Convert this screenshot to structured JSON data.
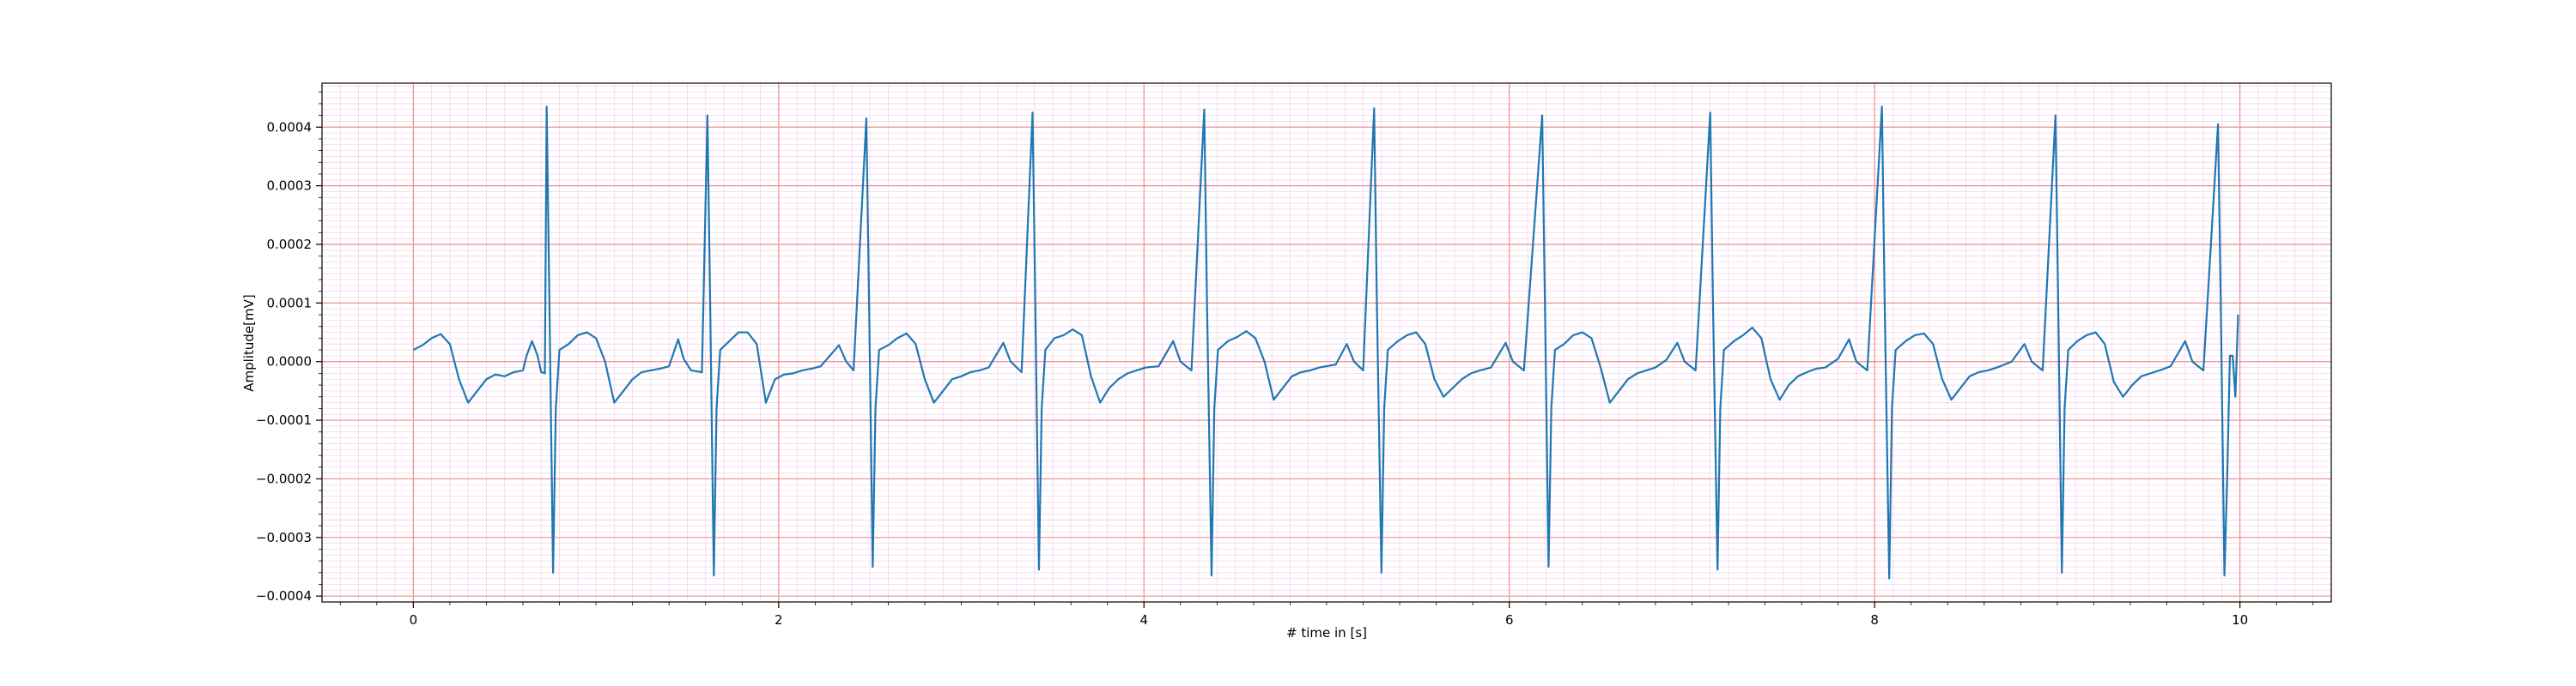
{
  "chart_data": {
    "type": "line",
    "title": "",
    "xlabel": "# time in [s]",
    "ylabel": "Amplitude[mV]",
    "xlim": [
      -0.5,
      10.5
    ],
    "ylim": [
      -0.00041,
      0.000475
    ],
    "x_ticks": [
      0,
      2,
      4,
      6,
      8,
      10
    ],
    "x_tick_labels": [
      "0",
      "2",
      "4",
      "6",
      "8",
      "10"
    ],
    "y_ticks": [
      -0.0004,
      -0.0003,
      -0.0002,
      -0.0001,
      0.0,
      0.0001,
      0.0002,
      0.0003,
      0.0004
    ],
    "y_tick_labels": [
      "−0.0004",
      "−0.0003",
      "−0.0002",
      "−0.0001",
      "0.0000",
      "0.0001",
      "0.0002",
      "0.0003",
      "0.0004"
    ],
    "major_grid": true,
    "minor_grid": true,
    "colors": {
      "line": "#1f77b4",
      "major_grid": "#f28b8b",
      "minor_grid": "#f7d4ee",
      "axes": "#000000"
    },
    "series": [
      {
        "values": [
          [
            0.0,
            2e-05
          ],
          [
            0.05,
            2.8e-05
          ],
          [
            0.1,
            4e-05
          ],
          [
            0.15,
            4.7e-05
          ],
          [
            0.2,
            3e-05
          ],
          [
            0.25,
            -3e-05
          ],
          [
            0.3,
            -7e-05
          ],
          [
            0.35,
            -5e-05
          ],
          [
            0.4,
            -3e-05
          ],
          [
            0.45,
            -2.2e-05
          ],
          [
            0.5,
            -2.5e-05
          ],
          [
            0.55,
            -1.8e-05
          ],
          [
            0.6,
            -1.5e-05
          ],
          [
            0.62,
            1e-05
          ],
          [
            0.65,
            3.5e-05
          ],
          [
            0.68,
            1e-05
          ],
          [
            0.7,
            -1.8e-05
          ],
          [
            0.72,
            -2e-05
          ],
          [
            0.73,
            0.000435
          ],
          [
            0.745,
            0.0001
          ],
          [
            0.765,
            -0.00036
          ],
          [
            0.78,
            -8e-05
          ],
          [
            0.8,
            2e-05
          ],
          [
            0.85,
            3e-05
          ],
          [
            0.9,
            4.5e-05
          ],
          [
            0.95,
            5e-05
          ],
          [
            1.0,
            4e-05
          ],
          [
            1.05,
            0.0
          ],
          [
            1.1,
            -7e-05
          ],
          [
            1.15,
            -5e-05
          ],
          [
            1.2,
            -3e-05
          ],
          [
            1.25,
            -1.8e-05
          ],
          [
            1.3,
            -1.5e-05
          ],
          [
            1.35,
            -1.2e-05
          ],
          [
            1.4,
            -8e-06
          ],
          [
            1.45,
            3.8e-05
          ],
          [
            1.48,
            5e-06
          ],
          [
            1.52,
            -1.5e-05
          ],
          [
            1.58,
            -1.8e-05
          ],
          [
            1.61,
            0.00042
          ],
          [
            1.625,
            0.0001
          ],
          [
            1.645,
            -0.000365
          ],
          [
            1.66,
            -8e-05
          ],
          [
            1.68,
            2e-05
          ],
          [
            1.73,
            3.5e-05
          ],
          [
            1.78,
            5e-05
          ],
          [
            1.83,
            5e-05
          ],
          [
            1.88,
            3e-05
          ],
          [
            1.93,
            -7e-05
          ],
          [
            1.98,
            -3e-05
          ],
          [
            2.03,
            -2.2e-05
          ],
          [
            2.08,
            -2e-05
          ],
          [
            2.13,
            -1.5e-05
          ],
          [
            2.18,
            -1.2e-05
          ],
          [
            2.23,
            -8e-06
          ],
          [
            2.33,
            2.8e-05
          ],
          [
            2.37,
            0.0
          ],
          [
            2.41,
            -1.5e-05
          ],
          [
            2.48,
            0.000415
          ],
          [
            2.495,
            0.0001
          ],
          [
            2.515,
            -0.00035
          ],
          [
            2.53,
            -8e-05
          ],
          [
            2.55,
            2e-05
          ],
          [
            2.6,
            2.8e-05
          ],
          [
            2.65,
            4e-05
          ],
          [
            2.7,
            4.8e-05
          ],
          [
            2.75,
            3e-05
          ],
          [
            2.8,
            -3e-05
          ],
          [
            2.85,
            -7e-05
          ],
          [
            2.9,
            -5e-05
          ],
          [
            2.95,
            -3e-05
          ],
          [
            3.0,
            -2.5e-05
          ],
          [
            3.05,
            -1.8e-05
          ],
          [
            3.1,
            -1.5e-05
          ],
          [
            3.15,
            -1e-05
          ],
          [
            3.23,
            3.2e-05
          ],
          [
            3.27,
            0.0
          ],
          [
            3.33,
            -1.8e-05
          ],
          [
            3.39,
            0.000425
          ],
          [
            3.405,
            0.0001
          ],
          [
            3.425,
            -0.000355
          ],
          [
            3.44,
            -8e-05
          ],
          [
            3.46,
            2e-05
          ],
          [
            3.51,
            4e-05
          ],
          [
            3.56,
            4.5e-05
          ],
          [
            3.61,
            5.5e-05
          ],
          [
            3.66,
            4.5e-05
          ],
          [
            3.71,
            -2.5e-05
          ],
          [
            3.76,
            -7e-05
          ],
          [
            3.81,
            -4.5e-05
          ],
          [
            3.86,
            -3e-05
          ],
          [
            3.91,
            -2e-05
          ],
          [
            3.96,
            -1.5e-05
          ],
          [
            4.01,
            -1e-05
          ],
          [
            4.08,
            -8e-06
          ],
          [
            4.16,
            3.5e-05
          ],
          [
            4.2,
            0.0
          ],
          [
            4.26,
            -1.5e-05
          ],
          [
            4.33,
            0.00043
          ],
          [
            4.345,
            0.0001
          ],
          [
            4.37,
            -0.000365
          ],
          [
            4.385,
            -8e-05
          ],
          [
            4.405,
            2e-05
          ],
          [
            4.46,
            3.5e-05
          ],
          [
            4.51,
            4.2e-05
          ],
          [
            4.56,
            5.2e-05
          ],
          [
            4.61,
            4e-05
          ],
          [
            4.66,
            0.0
          ],
          [
            4.71,
            -6.5e-05
          ],
          [
            4.76,
            -4.5e-05
          ],
          [
            4.81,
            -2.5e-05
          ],
          [
            4.86,
            -1.8e-05
          ],
          [
            4.91,
            -1.5e-05
          ],
          [
            4.96,
            -1e-05
          ],
          [
            5.05,
            -5e-06
          ],
          [
            5.11,
            3e-05
          ],
          [
            5.15,
            0.0
          ],
          [
            5.2,
            -1.5e-05
          ],
          [
            5.26,
            0.000432
          ],
          [
            5.275,
            0.0001
          ],
          [
            5.3,
            -0.00036
          ],
          [
            5.315,
            -8e-05
          ],
          [
            5.335,
            2e-05
          ],
          [
            5.39,
            3.5e-05
          ],
          [
            5.44,
            4.5e-05
          ],
          [
            5.49,
            5e-05
          ],
          [
            5.54,
            3e-05
          ],
          [
            5.59,
            -3e-05
          ],
          [
            5.64,
            -6e-05
          ],
          [
            5.69,
            -4.5e-05
          ],
          [
            5.74,
            -3e-05
          ],
          [
            5.79,
            -2e-05
          ],
          [
            5.84,
            -1.5e-05
          ],
          [
            5.9,
            -1e-05
          ],
          [
            5.98,
            3.2e-05
          ],
          [
            6.02,
            0.0
          ],
          [
            6.08,
            -1.5e-05
          ],
          [
            6.18,
            0.00042
          ],
          [
            6.195,
            0.0001
          ],
          [
            6.215,
            -0.00035
          ],
          [
            6.23,
            -8e-05
          ],
          [
            6.25,
            2e-05
          ],
          [
            6.3,
            3e-05
          ],
          [
            6.35,
            4.5e-05
          ],
          [
            6.4,
            5e-05
          ],
          [
            6.45,
            4e-05
          ],
          [
            6.5,
            -1e-05
          ],
          [
            6.55,
            -7e-05
          ],
          [
            6.6,
            -5e-05
          ],
          [
            6.65,
            -3e-05
          ],
          [
            6.7,
            -2e-05
          ],
          [
            6.75,
            -1.5e-05
          ],
          [
            6.8,
            -1e-05
          ],
          [
            6.86,
            3e-06
          ],
          [
            6.92,
            3.2e-05
          ],
          [
            6.96,
            0.0
          ],
          [
            7.02,
            -1.5e-05
          ],
          [
            7.1,
            0.000425
          ],
          [
            7.115,
            0.0001
          ],
          [
            7.14,
            -0.000355
          ],
          [
            7.155,
            -8e-05
          ],
          [
            7.175,
            2e-05
          ],
          [
            7.23,
            3.5e-05
          ],
          [
            7.28,
            4.5e-05
          ],
          [
            7.33,
            5.8e-05
          ],
          [
            7.38,
            4e-05
          ],
          [
            7.43,
            -3e-05
          ],
          [
            7.48,
            -6.5e-05
          ],
          [
            7.53,
            -4e-05
          ],
          [
            7.58,
            -2.5e-05
          ],
          [
            7.63,
            -1.8e-05
          ],
          [
            7.68,
            -1.2e-05
          ],
          [
            7.73,
            -1e-05
          ],
          [
            7.8,
            5e-06
          ],
          [
            7.86,
            3.8e-05
          ],
          [
            7.9,
            0.0
          ],
          [
            7.96,
            -1.5e-05
          ],
          [
            8.04,
            0.000435
          ],
          [
            8.055,
            0.0001
          ],
          [
            8.08,
            -0.00037
          ],
          [
            8.095,
            -8e-05
          ],
          [
            8.115,
            2e-05
          ],
          [
            8.17,
            3.5e-05
          ],
          [
            8.22,
            4.5e-05
          ],
          [
            8.27,
            4.8e-05
          ],
          [
            8.32,
            3e-05
          ],
          [
            8.37,
            -3e-05
          ],
          [
            8.42,
            -6.5e-05
          ],
          [
            8.47,
            -4.5e-05
          ],
          [
            8.52,
            -2.5e-05
          ],
          [
            8.57,
            -1.8e-05
          ],
          [
            8.62,
            -1.5e-05
          ],
          [
            8.67,
            -1e-05
          ],
          [
            8.75,
            0.0
          ],
          [
            8.82,
            3e-05
          ],
          [
            8.86,
            0.0
          ],
          [
            8.92,
            -1.5e-05
          ],
          [
            8.99,
            0.00042
          ],
          [
            9.005,
            0.0001
          ],
          [
            9.025,
            -0.00036
          ],
          [
            9.04,
            -8e-05
          ],
          [
            9.06,
            2e-05
          ],
          [
            9.11,
            3.5e-05
          ],
          [
            9.16,
            4.5e-05
          ],
          [
            9.21,
            5e-05
          ],
          [
            9.26,
            3e-05
          ],
          [
            9.31,
            -3.5e-05
          ],
          [
            9.36,
            -6e-05
          ],
          [
            9.41,
            -4e-05
          ],
          [
            9.46,
            -2.5e-05
          ],
          [
            9.51,
            -2e-05
          ],
          [
            9.56,
            -1.5e-05
          ],
          [
            9.62,
            -8e-06
          ],
          [
            9.7,
            3.5e-05
          ],
          [
            9.74,
            0.0
          ],
          [
            9.8,
            -1.5e-05
          ],
          [
            9.88,
            0.000405
          ],
          [
            9.895,
            0.0001
          ],
          [
            9.915,
            -0.000365
          ],
          [
            9.93,
            -0.0002
          ],
          [
            9.945,
            1e-05
          ],
          [
            9.96,
            1e-05
          ],
          [
            9.975,
            -6e-05
          ],
          [
            9.99,
            8e-05
          ]
        ]
      }
    ]
  }
}
